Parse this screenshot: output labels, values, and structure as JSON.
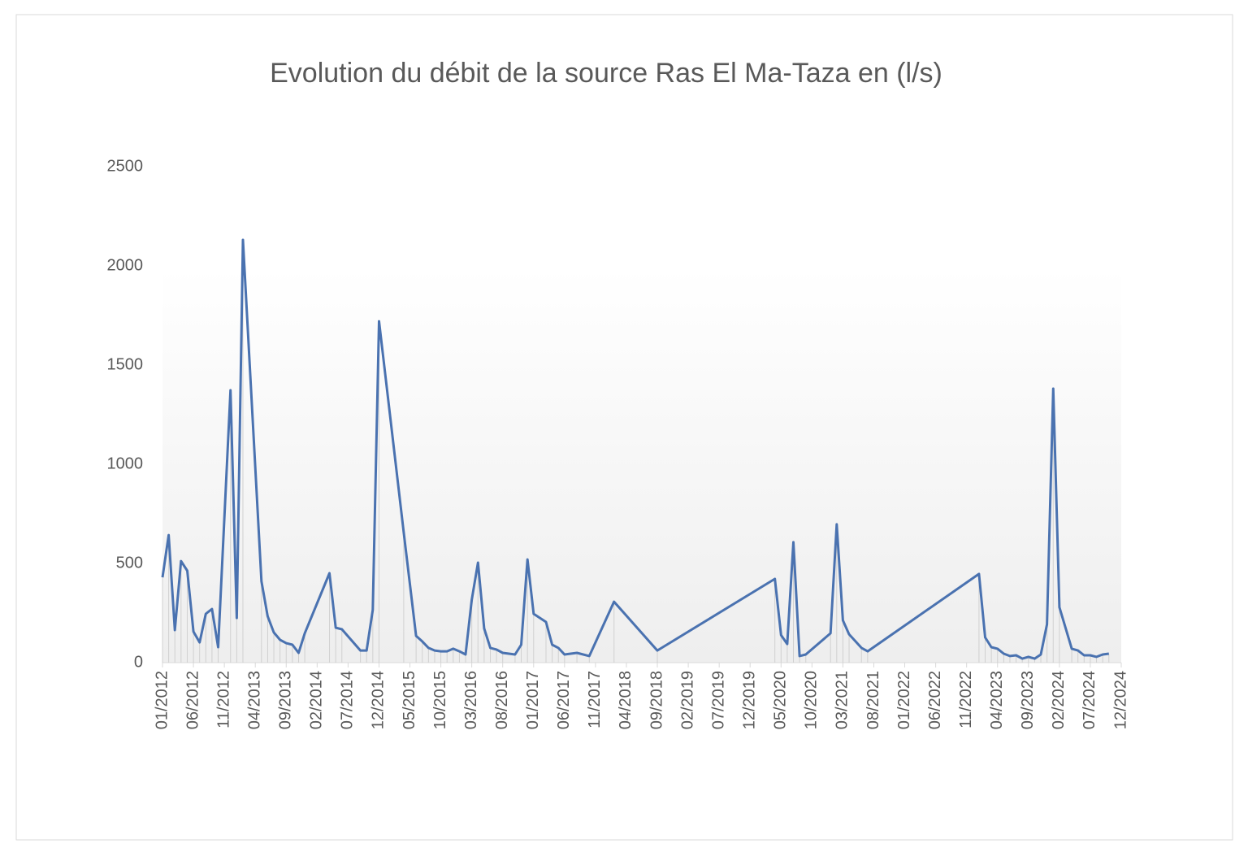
{
  "chart_data": {
    "type": "line",
    "title": "Evolution du débit de la source Ras El Ma-Taza en (l/s)",
    "color": "#4a72b0",
    "drop_lines": true,
    "x": [
      "01/2012",
      "02/2012",
      "03/2012",
      "04/2012",
      "05/2012",
      "06/2012",
      "07/2012",
      "08/2012",
      "09/2012",
      "10/2012",
      "12/2012",
      "01/2013",
      "02/2013",
      "05/2013",
      "06/2013",
      "07/2013",
      "08/2013",
      "09/2013",
      "10/2013",
      "11/2013",
      "12/2013",
      "04/2014",
      "05/2014",
      "06/2014",
      "09/2014",
      "10/2014",
      "11/2014",
      "12/2014",
      "04/2015",
      "06/2015",
      "07/2015",
      "08/2015",
      "09/2015",
      "10/2015",
      "11/2015",
      "12/2015",
      "01/2016",
      "02/2016",
      "03/2016",
      "04/2016",
      "05/2016",
      "06/2016",
      "07/2016",
      "08/2016",
      "10/2016",
      "11/2016",
      "12/2016",
      "01/2017",
      "03/2017",
      "04/2017",
      "05/2017",
      "06/2017",
      "08/2017",
      "10/2017",
      "02/2018",
      "09/2018",
      "04/2020",
      "05/2020",
      "06/2020",
      "07/2020",
      "08/2020",
      "09/2020",
      "01/2021",
      "02/2021",
      "03/2021",
      "04/2021",
      "06/2021",
      "07/2021",
      "01/2023",
      "02/2023",
      "03/2023",
      "04/2023",
      "05/2023",
      "06/2023",
      "07/2023",
      "08/2023",
      "09/2023",
      "10/2023",
      "11/2023",
      "12/2023",
      "01/2024",
      "02/2024",
      "04/2024",
      "05/2024",
      "06/2024",
      "07/2024",
      "08/2024",
      "09/2024",
      "10/2024"
    ],
    "values": [
      430,
      643,
      164,
      512,
      463,
      156,
      102,
      246,
      270,
      78,
      1373,
      225,
      2131,
      410,
      234,
      152,
      115,
      98,
      90,
      49,
      148,
      451,
      176,
      168,
      61,
      61,
      266,
      1721,
      656,
      135,
      107,
      74,
      61,
      57,
      57,
      70,
      57,
      41,
      316,
      504,
      172,
      74,
      66,
      49,
      41,
      90,
      520,
      246,
      205,
      90,
      74,
      41,
      49,
      33,
      307,
      61,
      422,
      139,
      94,
      607,
      33,
      41,
      148,
      697,
      213,
      143,
      74,
      57,
      447,
      127,
      78,
      70,
      45,
      33,
      37,
      20,
      29,
      20,
      41,
      193,
      1381,
      279,
      70,
      61,
      37,
      37,
      29,
      41,
      45
    ],
    "xlim": [
      "01/2012",
      "12/2024"
    ],
    "xticks": [
      "01/2012",
      "06/2012",
      "11/2012",
      "04/2013",
      "09/2013",
      "02/2014",
      "07/2014",
      "12/2014",
      "05/2015",
      "10/2015",
      "03/2016",
      "08/2016",
      "01/2017",
      "06/2017",
      "11/2017",
      "04/2018",
      "09/2018",
      "02/2019",
      "07/2019",
      "12/2019",
      "05/2020",
      "10/2020",
      "03/2021",
      "08/2021",
      "01/2022",
      "06/2022",
      "11/2022",
      "04/2023",
      "09/2023",
      "02/2024",
      "07/2024",
      "12/2024"
    ],
    "ylim": [
      0,
      2500
    ],
    "yticks": [
      0,
      500,
      1000,
      1500,
      2000,
      2500
    ]
  }
}
